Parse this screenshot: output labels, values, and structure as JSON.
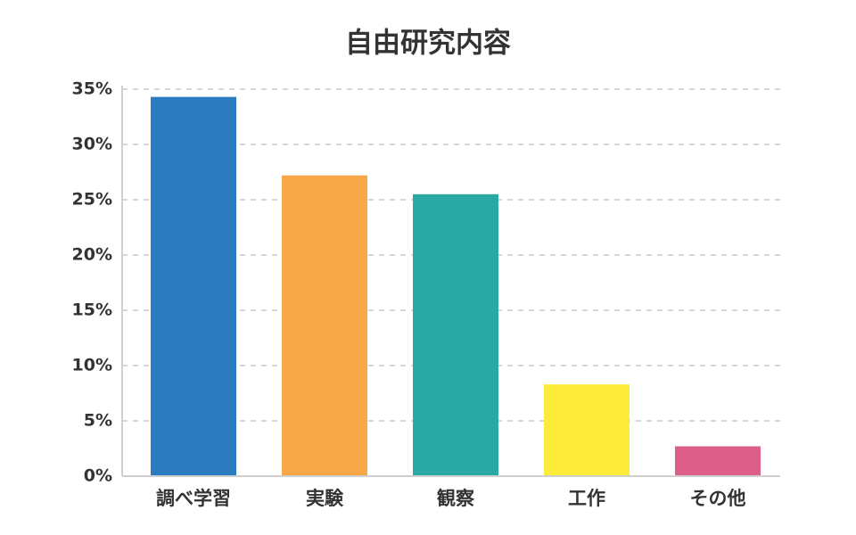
{
  "chart_data": {
    "type": "bar",
    "title": "自由研究内容",
    "categories": [
      "調べ学習",
      "実験",
      "観察",
      "工作",
      "その他"
    ],
    "values": [
      34.3,
      27.2,
      25.5,
      8.3,
      2.7
    ],
    "colors": [
      "#2b7bbf",
      "#f8a746",
      "#2aa9a4",
      "#fdeb3a",
      "#dd5f89"
    ],
    "ylim": [
      0,
      35
    ],
    "yticks": [
      {
        "value": 0,
        "label": "0%"
      },
      {
        "value": 5,
        "label": "5%"
      },
      {
        "value": 10,
        "label": "10%"
      },
      {
        "value": 15,
        "label": "15%"
      },
      {
        "value": 20,
        "label": "20%"
      },
      {
        "value": 25,
        "label": "25%"
      },
      {
        "value": 30,
        "label": "30%"
      },
      {
        "value": 35,
        "label": "35%"
      }
    ],
    "grid": true
  }
}
